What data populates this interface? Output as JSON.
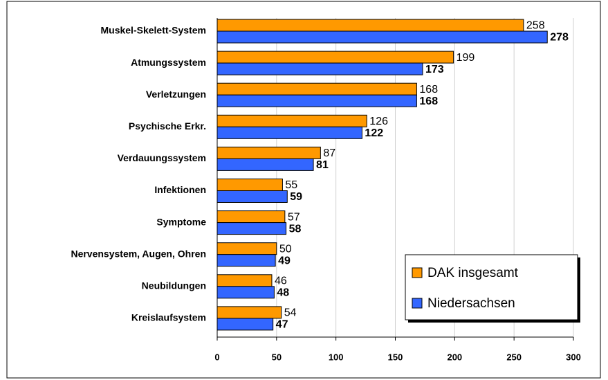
{
  "chart_data": {
    "type": "bar",
    "orientation": "horizontal",
    "categories": [
      "Muskel-Skelett-System",
      "Atmungssystem",
      "Verletzungen",
      "Psychische Erkr.",
      "Verdauungssystem",
      "Infektionen",
      "Symptome",
      "Nervensystem, Augen, Ohren",
      "Neubildungen",
      "Kreislaufsystem"
    ],
    "series": [
      {
        "name": "DAK insgesamt",
        "color": "#ff9900",
        "values": [
          258,
          199,
          168,
          126,
          87,
          55,
          57,
          50,
          46,
          54
        ]
      },
      {
        "name": "Niedersachsen",
        "color": "#3366ff",
        "values": [
          278,
          173,
          168,
          122,
          81,
          59,
          58,
          49,
          48,
          47
        ]
      }
    ],
    "xlim": [
      0,
      300
    ],
    "xticks": [
      0,
      50,
      100,
      150,
      200,
      250,
      300
    ],
    "grid": true,
    "legend": "lower right"
  }
}
